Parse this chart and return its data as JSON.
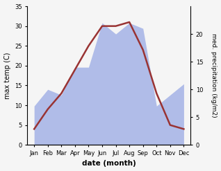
{
  "months": [
    "Jan",
    "Feb",
    "Mar",
    "Apr",
    "May",
    "Jun",
    "Jul",
    "Aug",
    "Sep",
    "Oct",
    "Nov",
    "Dec"
  ],
  "month_x": [
    1,
    2,
    3,
    4,
    5,
    6,
    7,
    8,
    9,
    10,
    11,
    12
  ],
  "temperature": [
    4.0,
    9.0,
    13.0,
    19.0,
    25.0,
    30.0,
    30.0,
    31.0,
    24.0,
    13.0,
    5.0,
    4.0
  ],
  "precipitation_raw": [
    7.0,
    10.0,
    9.0,
    14.0,
    14.0,
    22.0,
    20.0,
    22.0,
    21.0,
    7.0,
    9.0,
    11.0
  ],
  "temp_ylim": [
    0,
    35
  ],
  "precip_ylim_max": 25,
  "temp_color": "#993333",
  "precip_fill_color": "#b0bce8",
  "left_ylabel": "max temp (C)",
  "right_ylabel": "med. precipitation (kg/m2)",
  "xlabel": "date (month)",
  "background_color": "#f5f5f5",
  "right_yticks": [
    0,
    5,
    10,
    15,
    20
  ],
  "left_yticks": [
    0,
    5,
    10,
    15,
    20,
    25,
    30,
    35
  ]
}
